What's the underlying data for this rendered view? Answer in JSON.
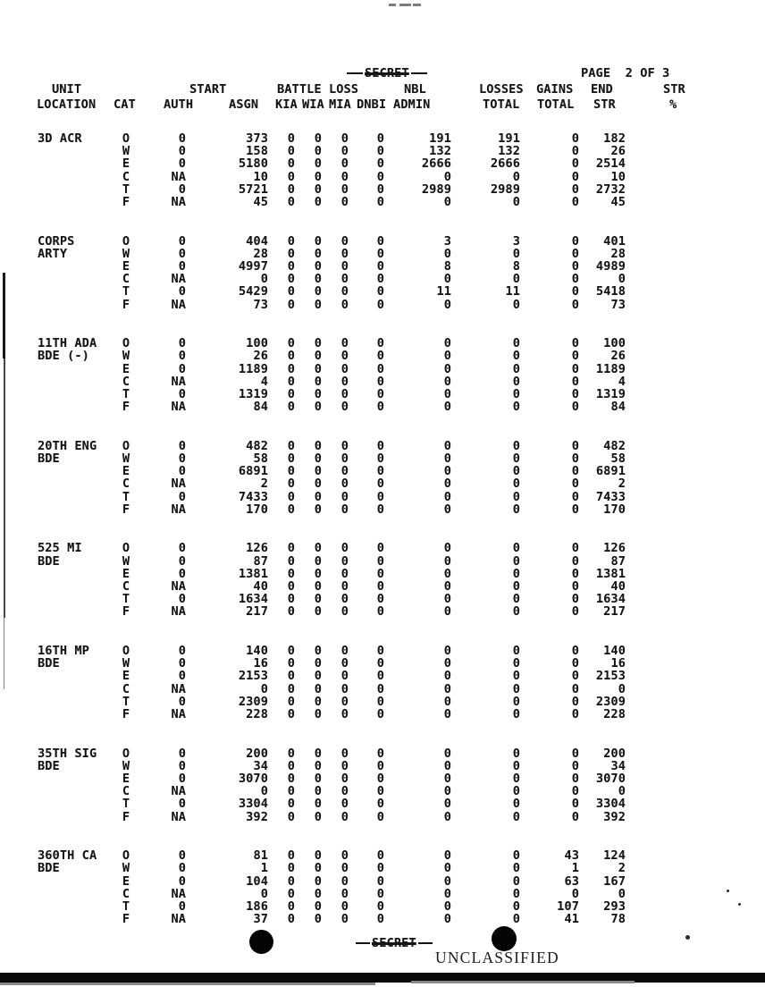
{
  "doc": {
    "classification_top": "SECRET",
    "classification_bottom": "SECRET",
    "stamp": "UNCLASSIFIED",
    "page_label": "PAGE  2 OF 3"
  },
  "table": {
    "header_row1": {
      "unit": "UNIT",
      "start": "START",
      "battle_loss": "BATTLE LOSS",
      "nbl": "NBL",
      "losses": "LOSSES",
      "gains": "GAINS",
      "end": "END",
      "str": "STR"
    },
    "header_row2": {
      "location": "LOCATION",
      "cat": "CAT",
      "auth": "AUTH",
      "asgn": "ASGN",
      "kia": "KIA",
      "wia": "WIA",
      "mia": "MIA",
      "dnbi": "DNBI",
      "admin": "ADMIN",
      "losses_total": "TOTAL",
      "gains_total": "TOTAL",
      "str": "STR",
      "pct": "%"
    },
    "groups": [
      {
        "unit_line1": "3D ACR",
        "unit_line2": "",
        "rows": [
          {
            "cat": "O",
            "auth": "0",
            "asgn": "373",
            "kia": "0",
            "wia": "0",
            "mia": "0",
            "dnbi": "0",
            "admin": "191",
            "losses": "191",
            "gains": "0",
            "end": "182"
          },
          {
            "cat": "W",
            "auth": "0",
            "asgn": "158",
            "kia": "0",
            "wia": "0",
            "mia": "0",
            "dnbi": "0",
            "admin": "132",
            "losses": "132",
            "gains": "0",
            "end": "26"
          },
          {
            "cat": "E",
            "auth": "0",
            "asgn": "5180",
            "kia": "0",
            "wia": "0",
            "mia": "0",
            "dnbi": "0",
            "admin": "2666",
            "losses": "2666",
            "gains": "0",
            "end": "2514"
          },
          {
            "cat": "C",
            "auth": "NA",
            "asgn": "10",
            "kia": "0",
            "wia": "0",
            "mia": "0",
            "dnbi": "0",
            "admin": "0",
            "losses": "0",
            "gains": "0",
            "end": "10"
          },
          {
            "cat": "T",
            "auth": "0",
            "asgn": "5721",
            "kia": "0",
            "wia": "0",
            "mia": "0",
            "dnbi": "0",
            "admin": "2989",
            "losses": "2989",
            "gains": "0",
            "end": "2732"
          },
          {
            "cat": "F",
            "auth": "NA",
            "asgn": "45",
            "kia": "0",
            "wia": "0",
            "mia": "0",
            "dnbi": "0",
            "admin": "0",
            "losses": "0",
            "gains": "0",
            "end": "45"
          }
        ]
      },
      {
        "unit_line1": "CORPS",
        "unit_line2": "ARTY",
        "rows": [
          {
            "cat": "O",
            "auth": "0",
            "asgn": "404",
            "kia": "0",
            "wia": "0",
            "mia": "0",
            "dnbi": "0",
            "admin": "3",
            "losses": "3",
            "gains": "0",
            "end": "401"
          },
          {
            "cat": "W",
            "auth": "0",
            "asgn": "28",
            "kia": "0",
            "wia": "0",
            "mia": "0",
            "dnbi": "0",
            "admin": "0",
            "losses": "0",
            "gains": "0",
            "end": "28"
          },
          {
            "cat": "E",
            "auth": "0",
            "asgn": "4997",
            "kia": "0",
            "wia": "0",
            "mia": "0",
            "dnbi": "0",
            "admin": "8",
            "losses": "8",
            "gains": "0",
            "end": "4989"
          },
          {
            "cat": "C",
            "auth": "NA",
            "asgn": "0",
            "kia": "0",
            "wia": "0",
            "mia": "0",
            "dnbi": "0",
            "admin": "0",
            "losses": "0",
            "gains": "0",
            "end": "0"
          },
          {
            "cat": "T",
            "auth": "0",
            "asgn": "5429",
            "kia": "0",
            "wia": "0",
            "mia": "0",
            "dnbi": "0",
            "admin": "11",
            "losses": "11",
            "gains": "0",
            "end": "5418"
          },
          {
            "cat": "F",
            "auth": "NA",
            "asgn": "73",
            "kia": "0",
            "wia": "0",
            "mia": "0",
            "dnbi": "0",
            "admin": "0",
            "losses": "0",
            "gains": "0",
            "end": "73"
          }
        ]
      },
      {
        "unit_line1": "11TH ADA",
        "unit_line2": "BDE (-)",
        "rows": [
          {
            "cat": "O",
            "auth": "0",
            "asgn": "100",
            "kia": "0",
            "wia": "0",
            "mia": "0",
            "dnbi": "0",
            "admin": "0",
            "losses": "0",
            "gains": "0",
            "end": "100"
          },
          {
            "cat": "W",
            "auth": "0",
            "asgn": "26",
            "kia": "0",
            "wia": "0",
            "mia": "0",
            "dnbi": "0",
            "admin": "0",
            "losses": "0",
            "gains": "0",
            "end": "26"
          },
          {
            "cat": "E",
            "auth": "0",
            "asgn": "1189",
            "kia": "0",
            "wia": "0",
            "mia": "0",
            "dnbi": "0",
            "admin": "0",
            "losses": "0",
            "gains": "0",
            "end": "1189"
          },
          {
            "cat": "C",
            "auth": "NA",
            "asgn": "4",
            "kia": "0",
            "wia": "0",
            "mia": "0",
            "dnbi": "0",
            "admin": "0",
            "losses": "0",
            "gains": "0",
            "end": "4"
          },
          {
            "cat": "T",
            "auth": "0",
            "asgn": "1319",
            "kia": "0",
            "wia": "0",
            "mia": "0",
            "dnbi": "0",
            "admin": "0",
            "losses": "0",
            "gains": "0",
            "end": "1319"
          },
          {
            "cat": "F",
            "auth": "NA",
            "asgn": "84",
            "kia": "0",
            "wia": "0",
            "mia": "0",
            "dnbi": "0",
            "admin": "0",
            "losses": "0",
            "gains": "0",
            "end": "84"
          }
        ]
      },
      {
        "unit_line1": "20TH ENG",
        "unit_line2": "BDE",
        "rows": [
          {
            "cat": "O",
            "auth": "0",
            "asgn": "482",
            "kia": "0",
            "wia": "0",
            "mia": "0",
            "dnbi": "0",
            "admin": "0",
            "losses": "0",
            "gains": "0",
            "end": "482"
          },
          {
            "cat": "W",
            "auth": "0",
            "asgn": "58",
            "kia": "0",
            "wia": "0",
            "mia": "0",
            "dnbi": "0",
            "admin": "0",
            "losses": "0",
            "gains": "0",
            "end": "58"
          },
          {
            "cat": "E",
            "auth": "0",
            "asgn": "6891",
            "kia": "0",
            "wia": "0",
            "mia": "0",
            "dnbi": "0",
            "admin": "0",
            "losses": "0",
            "gains": "0",
            "end": "6891"
          },
          {
            "cat": "C",
            "auth": "NA",
            "asgn": "2",
            "kia": "0",
            "wia": "0",
            "mia": "0",
            "dnbi": "0",
            "admin": "0",
            "losses": "0",
            "gains": "0",
            "end": "2"
          },
          {
            "cat": "T",
            "auth": "0",
            "asgn": "7433",
            "kia": "0",
            "wia": "0",
            "mia": "0",
            "dnbi": "0",
            "admin": "0",
            "losses": "0",
            "gains": "0",
            "end": "7433"
          },
          {
            "cat": "F",
            "auth": "NA",
            "asgn": "170",
            "kia": "0",
            "wia": "0",
            "mia": "0",
            "dnbi": "0",
            "admin": "0",
            "losses": "0",
            "gains": "0",
            "end": "170"
          }
        ]
      },
      {
        "unit_line1": "525 MI",
        "unit_line2": "BDE",
        "rows": [
          {
            "cat": "O",
            "auth": "0",
            "asgn": "126",
            "kia": "0",
            "wia": "0",
            "mia": "0",
            "dnbi": "0",
            "admin": "0",
            "losses": "0",
            "gains": "0",
            "end": "126"
          },
          {
            "cat": "W",
            "auth": "0",
            "asgn": "87",
            "kia": "0",
            "wia": "0",
            "mia": "0",
            "dnbi": "0",
            "admin": "0",
            "losses": "0",
            "gains": "0",
            "end": "87"
          },
          {
            "cat": "E",
            "auth": "0",
            "asgn": "1381",
            "kia": "0",
            "wia": "0",
            "mia": "0",
            "dnbi": "0",
            "admin": "0",
            "losses": "0",
            "gains": "0",
            "end": "1381"
          },
          {
            "cat": "C",
            "auth": "NA",
            "asgn": "40",
            "kia": "0",
            "wia": "0",
            "mia": "0",
            "dnbi": "0",
            "admin": "0",
            "losses": "0",
            "gains": "0",
            "end": "40"
          },
          {
            "cat": "T",
            "auth": "0",
            "asgn": "1634",
            "kia": "0",
            "wia": "0",
            "mia": "0",
            "dnbi": "0",
            "admin": "0",
            "losses": "0",
            "gains": "0",
            "end": "1634"
          },
          {
            "cat": "F",
            "auth": "NA",
            "asgn": "217",
            "kia": "0",
            "wia": "0",
            "mia": "0",
            "dnbi": "0",
            "admin": "0",
            "losses": "0",
            "gains": "0",
            "end": "217"
          }
        ]
      },
      {
        "unit_line1": "16TH MP",
        "unit_line2": "BDE",
        "rows": [
          {
            "cat": "O",
            "auth": "0",
            "asgn": "140",
            "kia": "0",
            "wia": "0",
            "mia": "0",
            "dnbi": "0",
            "admin": "0",
            "losses": "0",
            "gains": "0",
            "end": "140"
          },
          {
            "cat": "W",
            "auth": "0",
            "asgn": "16",
            "kia": "0",
            "wia": "0",
            "mia": "0",
            "dnbi": "0",
            "admin": "0",
            "losses": "0",
            "gains": "0",
            "end": "16"
          },
          {
            "cat": "E",
            "auth": "0",
            "asgn": "2153",
            "kia": "0",
            "wia": "0",
            "mia": "0",
            "dnbi": "0",
            "admin": "0",
            "losses": "0",
            "gains": "0",
            "end": "2153"
          },
          {
            "cat": "C",
            "auth": "NA",
            "asgn": "0",
            "kia": "0",
            "wia": "0",
            "mia": "0",
            "dnbi": "0",
            "admin": "0",
            "losses": "0",
            "gains": "0",
            "end": "0"
          },
          {
            "cat": "T",
            "auth": "0",
            "asgn": "2309",
            "kia": "0",
            "wia": "0",
            "mia": "0",
            "dnbi": "0",
            "admin": "0",
            "losses": "0",
            "gains": "0",
            "end": "2309"
          },
          {
            "cat": "F",
            "auth": "NA",
            "asgn": "228",
            "kia": "0",
            "wia": "0",
            "mia": "0",
            "dnbi": "0",
            "admin": "0",
            "losses": "0",
            "gains": "0",
            "end": "228"
          }
        ]
      },
      {
        "unit_line1": "35TH SIG",
        "unit_line2": "BDE",
        "rows": [
          {
            "cat": "O",
            "auth": "0",
            "asgn": "200",
            "kia": "0",
            "wia": "0",
            "mia": "0",
            "dnbi": "0",
            "admin": "0",
            "losses": "0",
            "gains": "0",
            "end": "200"
          },
          {
            "cat": "W",
            "auth": "0",
            "asgn": "34",
            "kia": "0",
            "wia": "0",
            "mia": "0",
            "dnbi": "0",
            "admin": "0",
            "losses": "0",
            "gains": "0",
            "end": "34"
          },
          {
            "cat": "E",
            "auth": "0",
            "asgn": "3070",
            "kia": "0",
            "wia": "0",
            "mia": "0",
            "dnbi": "0",
            "admin": "0",
            "losses": "0",
            "gains": "0",
            "end": "3070"
          },
          {
            "cat": "C",
            "auth": "NA",
            "asgn": "0",
            "kia": "0",
            "wia": "0",
            "mia": "0",
            "dnbi": "0",
            "admin": "0",
            "losses": "0",
            "gains": "0",
            "end": "0"
          },
          {
            "cat": "T",
            "auth": "0",
            "asgn": "3304",
            "kia": "0",
            "wia": "0",
            "mia": "0",
            "dnbi": "0",
            "admin": "0",
            "losses": "0",
            "gains": "0",
            "end": "3304"
          },
          {
            "cat": "F",
            "auth": "NA",
            "asgn": "392",
            "kia": "0",
            "wia": "0",
            "mia": "0",
            "dnbi": "0",
            "admin": "0",
            "losses": "0",
            "gains": "0",
            "end": "392"
          }
        ]
      },
      {
        "unit_line1": "360TH CA",
        "unit_line2": "BDE",
        "rows": [
          {
            "cat": "O",
            "auth": "0",
            "asgn": "81",
            "kia": "0",
            "wia": "0",
            "mia": "0",
            "dnbi": "0",
            "admin": "0",
            "losses": "0",
            "gains": "43",
            "end": "124"
          },
          {
            "cat": "W",
            "auth": "0",
            "asgn": "1",
            "kia": "0",
            "wia": "0",
            "mia": "0",
            "dnbi": "0",
            "admin": "0",
            "losses": "0",
            "gains": "1",
            "end": "2"
          },
          {
            "cat": "E",
            "auth": "0",
            "asgn": "104",
            "kia": "0",
            "wia": "0",
            "mia": "0",
            "dnbi": "0",
            "admin": "0",
            "losses": "0",
            "gains": "63",
            "end": "167"
          },
          {
            "cat": "C",
            "auth": "NA",
            "asgn": "0",
            "kia": "0",
            "wia": "0",
            "mia": "0",
            "dnbi": "0",
            "admin": "0",
            "losses": "0",
            "gains": "0",
            "end": "0"
          },
          {
            "cat": "T",
            "auth": "0",
            "asgn": "186",
            "kia": "0",
            "wia": "0",
            "mia": "0",
            "dnbi": "0",
            "admin": "0",
            "losses": "0",
            "gains": "107",
            "end": "293"
          },
          {
            "cat": "F",
            "auth": "NA",
            "asgn": "37",
            "kia": "0",
            "wia": "0",
            "mia": "0",
            "dnbi": "0",
            "admin": "0",
            "losses": "0",
            "gains": "41",
            "end": "78"
          }
        ]
      }
    ]
  }
}
